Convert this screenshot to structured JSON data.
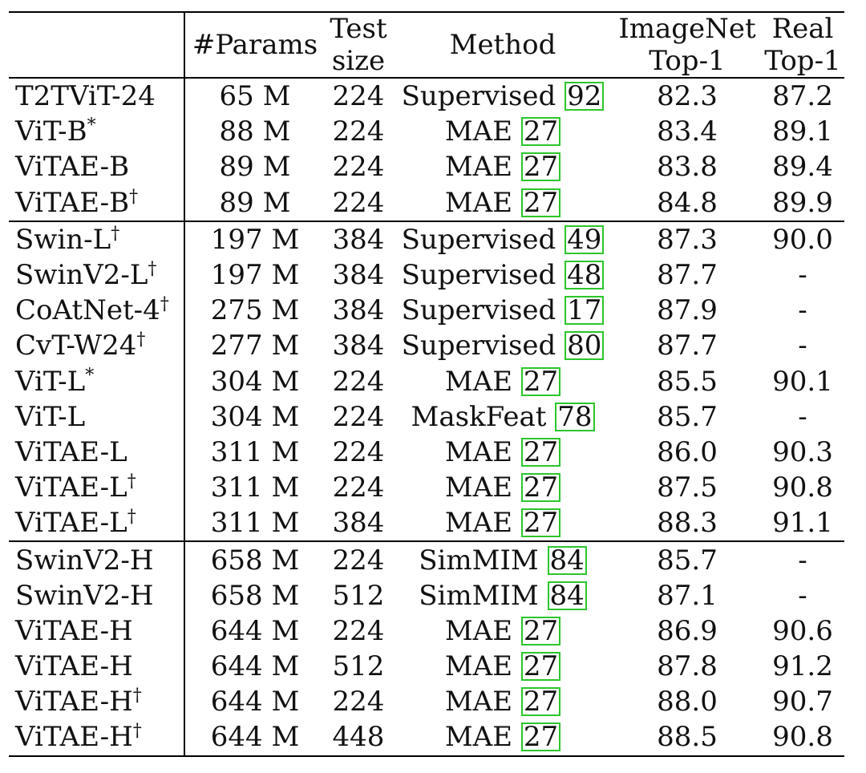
{
  "headers": {
    "model": "",
    "params": "#Params",
    "test_size_1": "Test",
    "test_size_2": "size",
    "method": "Method",
    "imagenet_1": "ImageNet",
    "imagenet_2": "Top-1",
    "real_1": "Real",
    "real_2": "Top-1"
  },
  "rows": [
    {
      "model": "T2TViT-24",
      "sup": "",
      "params": "65 M",
      "size": "224",
      "method": "Supervised",
      "ref": "92",
      "imagenet": "82.3",
      "real": "87.2"
    },
    {
      "model": "ViT-B",
      "sup": "*",
      "params": "88 M",
      "size": "224",
      "method": "MAE",
      "ref": "27",
      "imagenet": "83.4",
      "real": "89.1"
    },
    {
      "model": "ViTAE-B",
      "sup": "",
      "params": "89 M",
      "size": "224",
      "method": "MAE",
      "ref": "27",
      "imagenet": "83.8",
      "real": "89.4"
    },
    {
      "model": "ViTAE-B",
      "sup": "†",
      "params": "89 M",
      "size": "224",
      "method": "MAE",
      "ref": "27",
      "imagenet": "84.8",
      "real": "89.9"
    },
    {
      "model": "Swin-L",
      "sup": "†",
      "params": "197 M",
      "size": "384",
      "method": "Supervised",
      "ref": "49",
      "imagenet": "87.3",
      "real": "90.0"
    },
    {
      "model": "SwinV2-L",
      "sup": "†",
      "params": "197 M",
      "size": "384",
      "method": "Supervised",
      "ref": "48",
      "imagenet": "87.7",
      "real": "-"
    },
    {
      "model": "CoAtNet-4",
      "sup": "†",
      "params": "275 M",
      "size": "384",
      "method": "Supervised",
      "ref": "17",
      "imagenet": "87.9",
      "real": "-"
    },
    {
      "model": "CvT-W24",
      "sup": "†",
      "params": "277 M",
      "size": "384",
      "method": "Supervised",
      "ref": "80",
      "imagenet": "87.7",
      "real": "-"
    },
    {
      "model": "ViT-L",
      "sup": "*",
      "params": "304 M",
      "size": "224",
      "method": "MAE",
      "ref": "27",
      "imagenet": "85.5",
      "real": "90.1"
    },
    {
      "model": "ViT-L",
      "sup": "",
      "params": "304 M",
      "size": "224",
      "method": "MaskFeat",
      "ref": "78",
      "imagenet": "85.7",
      "real": "-"
    },
    {
      "model": "ViTAE-L",
      "sup": "",
      "params": "311 M",
      "size": "224",
      "method": "MAE",
      "ref": "27",
      "imagenet": "86.0",
      "real": "90.3"
    },
    {
      "model": "ViTAE-L",
      "sup": "†",
      "params": "311 M",
      "size": "224",
      "method": "MAE",
      "ref": "27",
      "imagenet": "87.5",
      "real": "90.8"
    },
    {
      "model": "ViTAE-L",
      "sup": "†",
      "params": "311 M",
      "size": "384",
      "method": "MAE",
      "ref": "27",
      "imagenet": "88.3",
      "real": "91.1"
    },
    {
      "model": "SwinV2-H",
      "sup": "",
      "params": "658 M",
      "size": "224",
      "method": "SimMIM",
      "ref": "84",
      "imagenet": "85.7",
      "real": "-"
    },
    {
      "model": "SwinV2-H",
      "sup": "",
      "params": "658 M",
      "size": "512",
      "method": "SimMIM",
      "ref": "84",
      "imagenet": "87.1",
      "real": "-"
    },
    {
      "model": "ViTAE-H",
      "sup": "",
      "params": "644 M",
      "size": "224",
      "method": "MAE",
      "ref": "27",
      "imagenet": "86.9",
      "real": "90.6"
    },
    {
      "model": "ViTAE-H",
      "sup": "",
      "params": "644 M",
      "size": "512",
      "method": "MAE",
      "ref": "27",
      "imagenet": "87.8",
      "real": "91.2"
    },
    {
      "model": "ViTAE-H",
      "sup": "†",
      "params": "644 M",
      "size": "224",
      "method": "MAE",
      "ref": "27",
      "imagenet": "88.0",
      "real": "90.7"
    },
    {
      "model": "ViTAE-H",
      "sup": "†",
      "params": "644 M",
      "size": "448",
      "method": "MAE",
      "ref": "27",
      "imagenet": "88.5",
      "real": "90.8"
    }
  ],
  "group_starts": [
    4,
    13
  ]
}
